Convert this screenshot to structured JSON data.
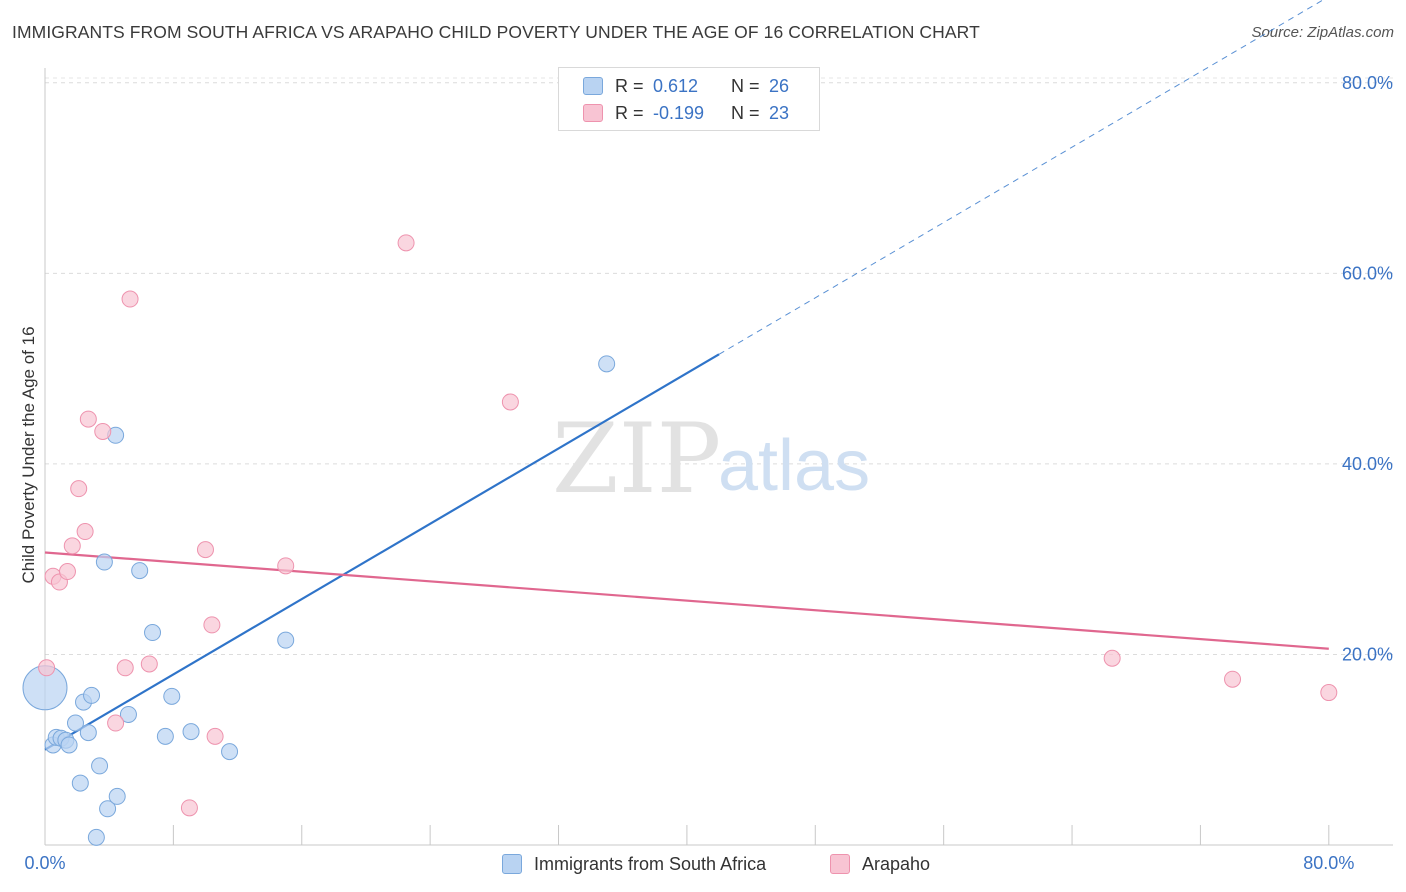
{
  "header": {
    "title": "IMMIGRANTS FROM SOUTH AFRICA VS ARAPAHO CHILD POVERTY UNDER THE AGE OF 16 CORRELATION CHART",
    "source": "Source: ZipAtlas.com"
  },
  "watermark": {
    "zip": "ZIP",
    "atlas": "atlas"
  },
  "legend": {
    "rows": [
      {
        "r_label": "R =",
        "r_value": "0.612",
        "n_label": "N =",
        "n_value": "26"
      },
      {
        "r_label": "R =",
        "r_value": "-0.199",
        "n_label": "N =",
        "n_value": "23"
      }
    ]
  },
  "bottom_legend": {
    "series1": "Immigrants from South Africa",
    "series2": "Arapaho"
  },
  "colors": {
    "blue_fill": "#b9d3f2",
    "blue_stroke": "#7aa8dc",
    "blue_line": "#2f74c9",
    "pink_fill": "#f8c4d3",
    "pink_stroke": "#ee93ae",
    "pink_line": "#e0678f",
    "tick_label": "#3b73c4"
  },
  "chart_data": {
    "type": "scatter",
    "title": "IMMIGRANTS FROM SOUTH AFRICA VS ARAPAHO CHILD POVERTY UNDER THE AGE OF 16 CORRELATION CHART",
    "xlabel": "",
    "ylabel": "Child Poverty Under the Age of 16",
    "xlim": [
      0,
      84
    ],
    "ylim": [
      0,
      80.5
    ],
    "x_tick_labels": [
      "0.0%",
      "80.0%"
    ],
    "y_ticks": [
      20,
      40,
      60,
      80
    ],
    "y_tick_labels": [
      "20.0%",
      "40.0%",
      "60.0%",
      "80.0%"
    ],
    "grid": true,
    "series": [
      {
        "name": "Immigrants from South Africa",
        "r": 0.612,
        "n": 26,
        "points": [
          {
            "x": 0.0,
            "y": 16.5,
            "big": true
          },
          {
            "x": 0.5,
            "y": 10.5
          },
          {
            "x": 0.7,
            "y": 11.3
          },
          {
            "x": 1.0,
            "y": 11.2
          },
          {
            "x": 1.3,
            "y": 11.0
          },
          {
            "x": 1.5,
            "y": 10.5
          },
          {
            "x": 1.9,
            "y": 12.8
          },
          {
            "x": 2.2,
            "y": 6.5
          },
          {
            "x": 2.4,
            "y": 15.0
          },
          {
            "x": 2.7,
            "y": 11.8
          },
          {
            "x": 2.9,
            "y": 15.7
          },
          {
            "x": 3.2,
            "y": 0.8
          },
          {
            "x": 3.4,
            "y": 8.3
          },
          {
            "x": 3.7,
            "y": 29.7
          },
          {
            "x": 3.9,
            "y": 3.8
          },
          {
            "x": 4.4,
            "y": 43.0
          },
          {
            "x": 4.5,
            "y": 5.1
          },
          {
            "x": 5.2,
            "y": 13.7
          },
          {
            "x": 5.9,
            "y": 28.8
          },
          {
            "x": 6.7,
            "y": 22.3
          },
          {
            "x": 7.5,
            "y": 11.4
          },
          {
            "x": 7.9,
            "y": 15.6
          },
          {
            "x": 9.1,
            "y": 11.9
          },
          {
            "x": 11.5,
            "y": 9.8
          },
          {
            "x": 15.0,
            "y": 21.5
          },
          {
            "x": 35.0,
            "y": 50.5
          }
        ],
        "trend": {
          "x0": 0.0,
          "y0": 10.0,
          "x1": 42.0,
          "y1": 51.5,
          "dash_to_x": 84.0
        }
      },
      {
        "name": "Arapaho",
        "r": -0.199,
        "n": 23,
        "points": [
          {
            "x": 0.1,
            "y": 18.6
          },
          {
            "x": 0.5,
            "y": 28.2
          },
          {
            "x": 0.9,
            "y": 27.6
          },
          {
            "x": 1.4,
            "y": 28.7
          },
          {
            "x": 1.7,
            "y": 31.4
          },
          {
            "x": 2.1,
            "y": 37.4
          },
          {
            "x": 2.5,
            "y": 32.9
          },
          {
            "x": 2.7,
            "y": 44.7
          },
          {
            "x": 3.6,
            "y": 43.4
          },
          {
            "x": 4.4,
            "y": 12.8
          },
          {
            "x": 5.0,
            "y": 18.6
          },
          {
            "x": 5.3,
            "y": 57.3
          },
          {
            "x": 6.5,
            "y": 19.0
          },
          {
            "x": 9.0,
            "y": 3.9
          },
          {
            "x": 10.0,
            "y": 31.0
          },
          {
            "x": 10.4,
            "y": 23.1
          },
          {
            "x": 10.6,
            "y": 11.4
          },
          {
            "x": 15.0,
            "y": 29.3
          },
          {
            "x": 22.5,
            "y": 63.2
          },
          {
            "x": 29.0,
            "y": 46.5
          },
          {
            "x": 66.5,
            "y": 19.6
          },
          {
            "x": 74.0,
            "y": 17.4
          },
          {
            "x": 80.0,
            "y": 16.0
          }
        ],
        "trend": {
          "x0": 0.0,
          "y0": 30.7,
          "x1": 80.0,
          "y1": 20.6
        }
      }
    ]
  }
}
